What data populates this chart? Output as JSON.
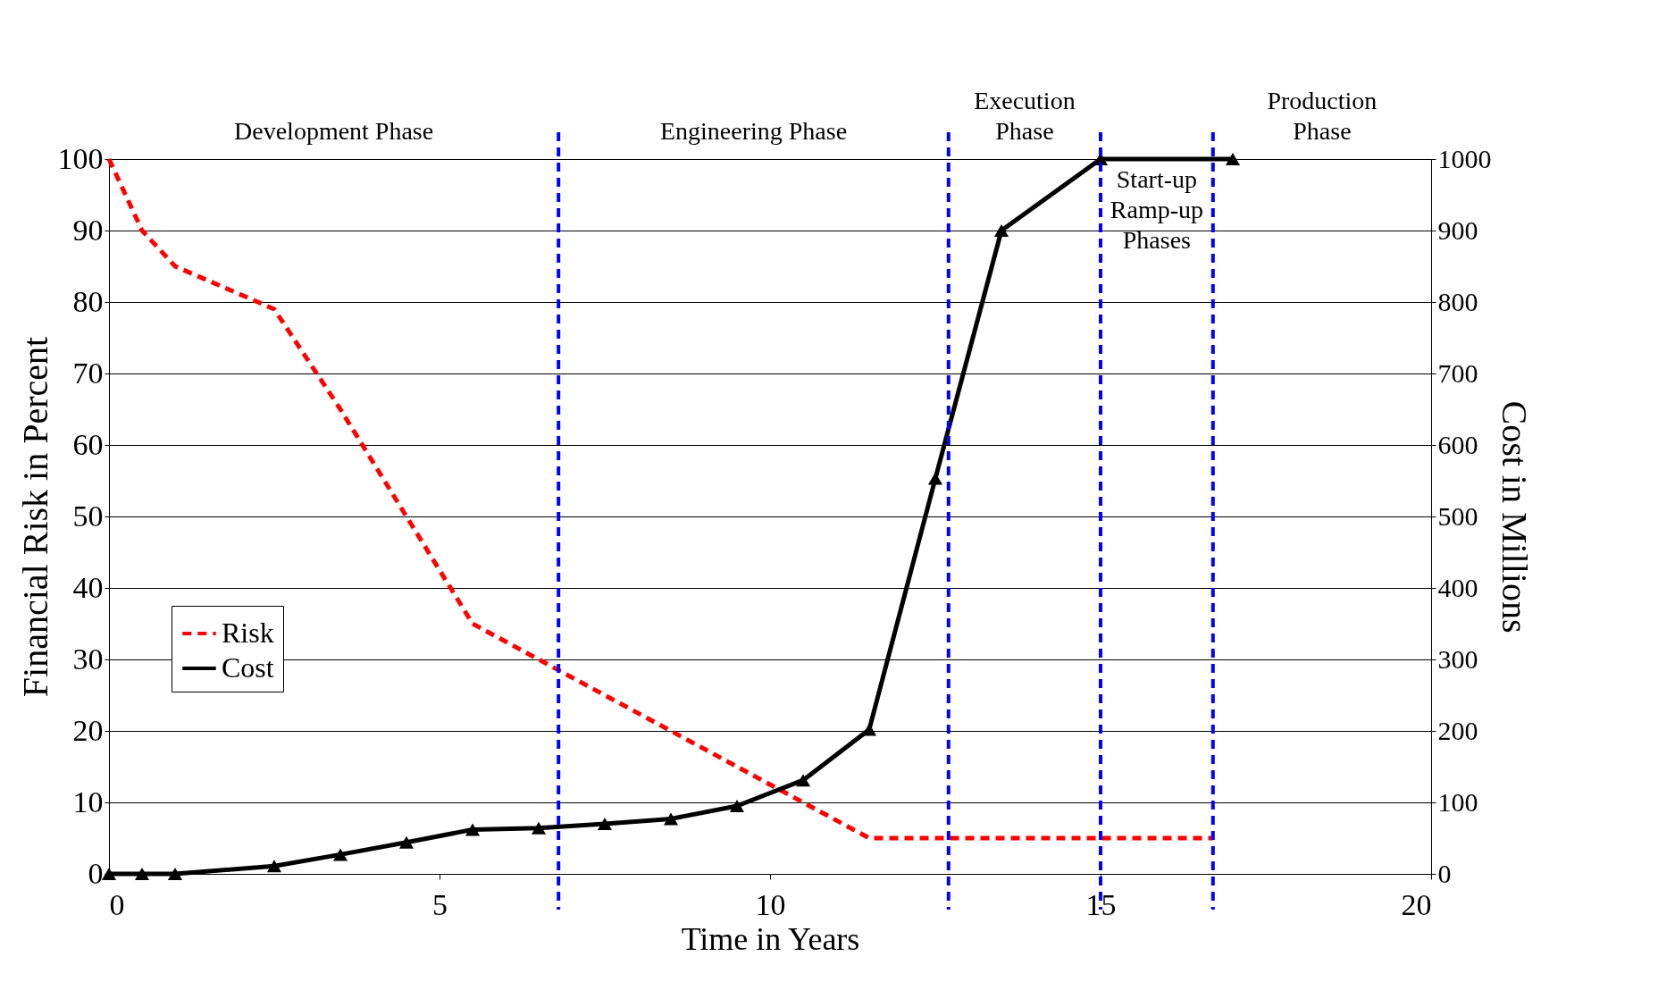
{
  "chart_data": {
    "type": "line",
    "xlabel": "Time in Years",
    "ylabel": "Financial Risk in Percent",
    "y2label": "Cost in Millions",
    "xlim": [
      0,
      20
    ],
    "xticks": [
      0,
      5,
      10,
      15,
      20
    ],
    "ylim": [
      0,
      100
    ],
    "yticks": [
      0,
      10,
      20,
      30,
      40,
      50,
      60,
      70,
      80,
      90,
      100
    ],
    "y2lim": [
      0,
      1000
    ],
    "y2ticks": [
      0,
      100,
      200,
      300,
      400,
      500,
      600,
      700,
      800,
      900,
      1000
    ],
    "grid": "y",
    "legend": "bottom left",
    "series": [
      {
        "name": "Risk",
        "color": "#ff0000",
        "line_style": "dashed",
        "marker": "none",
        "x": [
          0,
          0.5,
          1,
          2.5,
          3.5,
          4.5,
          5.5,
          6.5,
          7.5,
          8.5,
          9.5,
          10.5,
          11.5,
          16.7
        ],
        "values": [
          100,
          90,
          85,
          79,
          65,
          50,
          35,
          30,
          25,
          20,
          15,
          10,
          5,
          5
        ]
      },
      {
        "name": "Cost",
        "color": "#000000",
        "line_style": "solid",
        "marker": "triangle",
        "axis": "y2",
        "x": [
          0,
          0.5,
          1,
          2.5,
          3.5,
          4.5,
          5.5,
          6.5,
          7.5,
          8.5,
          9.5,
          10.5,
          11.5,
          12.5,
          13.5,
          15,
          17
        ],
        "values": [
          0,
          0,
          0,
          11,
          27,
          44,
          62,
          64,
          70,
          77,
          95,
          131,
          202,
          553,
          900,
          1000,
          1000
        ]
      }
    ],
    "ref_lines": [
      {
        "axis": "x",
        "value": 6.8,
        "color": "#0000ff",
        "line_style": "dashed"
      },
      {
        "axis": "x",
        "value": 12.7,
        "color": "#0000ff",
        "line_style": "dashed"
      },
      {
        "axis": "x",
        "value": 15,
        "color": "#0000ff",
        "line_style": "dashed"
      },
      {
        "axis": "x",
        "value": 16.7,
        "color": "#0000ff",
        "line_style": "dashed"
      }
    ],
    "annotations": [
      "Development Phase",
      "Engineering Phase",
      "Execution\nPhase",
      "Start-up\nRamp-up\nPhases",
      "Production\nPhase"
    ]
  }
}
